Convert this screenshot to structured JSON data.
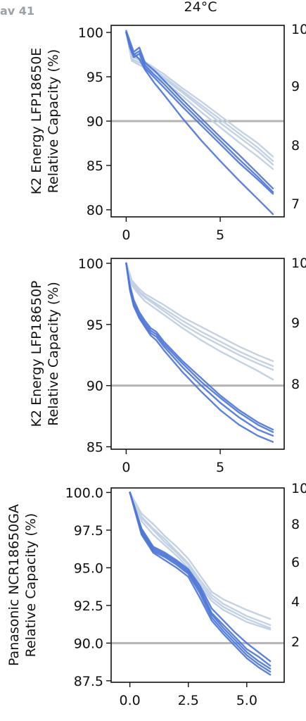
{
  "badge": "av 41",
  "colors": {
    "cycle_aged": "#4f77d8",
    "calendar_aged": "#c3d1e4",
    "threshold": "#b4b4b4",
    "axes": "#111111"
  },
  "chart_data": [
    {
      "type": "line",
      "title": "24°C",
      "ylabel": [
        "K2 Energy LFP18650E",
        "Relative Capacity (%)"
      ],
      "xlim": [
        -0.8,
        8.4
      ],
      "ylim": [
        79.2,
        100.8
      ],
      "xticks": [
        0,
        5
      ],
      "xtick_labels": [
        "0",
        "5"
      ],
      "yticks": [
        80,
        85,
        90,
        95,
        100
      ],
      "ytick_labels": [
        "80",
        "85",
        "90",
        "95",
        "100"
      ],
      "right_clipped_ticks": [
        "10",
        "9",
        "8",
        "7"
      ],
      "threshold": 90,
      "series": [
        {
          "group": "calendar_aged",
          "x": [
            0,
            0.3,
            1,
            2,
            3,
            4,
            5,
            6,
            7,
            7.8
          ],
          "y": [
            100,
            97.5,
            96.7,
            95.3,
            93.7,
            92.2,
            90.6,
            89,
            87.5,
            86.0
          ]
        },
        {
          "group": "calendar_aged",
          "x": [
            0,
            0.3,
            1,
            2,
            3,
            4,
            5,
            6,
            7,
            7.8
          ],
          "y": [
            100,
            97.3,
            96.5,
            95.0,
            93.4,
            91.8,
            90.2,
            88.6,
            87.0,
            85.5
          ]
        },
        {
          "group": "calendar_aged",
          "x": [
            0,
            0.3,
            1,
            2,
            3,
            4,
            5,
            6,
            7,
            7.8
          ],
          "y": [
            100,
            97.0,
            96.3,
            94.8,
            93.2,
            91.5,
            89.8,
            88.2,
            86.6,
            85.1
          ]
        },
        {
          "group": "calendar_aged",
          "x": [
            0,
            0.3,
            1,
            2,
            3,
            4,
            5,
            6,
            7,
            7.8
          ],
          "y": [
            100,
            96.8,
            96.0,
            94.5,
            92.8,
            91.0,
            89.3,
            87.6,
            86.0,
            84.6
          ]
        },
        {
          "group": "cycle_aged",
          "x": [
            0,
            0.2,
            0.4,
            0.7,
            1,
            1.5,
            2,
            3,
            4,
            5,
            6,
            7,
            7.8
          ],
          "y": [
            100.2,
            99.0,
            97.8,
            98.3,
            96.6,
            95.7,
            94.6,
            92.4,
            90.3,
            88.2,
            86.2,
            84.1,
            82.4
          ]
        },
        {
          "group": "cycle_aged",
          "x": [
            0,
            0.2,
            0.4,
            0.7,
            1,
            1.5,
            2,
            3,
            4,
            5,
            6,
            7,
            7.8
          ],
          "y": [
            100,
            98.6,
            97.5,
            97.9,
            96.3,
            95.2,
            94.2,
            92.0,
            89.9,
            87.8,
            85.7,
            83.7,
            82.0
          ]
        },
        {
          "group": "cycle_aged",
          "x": [
            0,
            0.2,
            0.4,
            0.7,
            1,
            1.5,
            2,
            3,
            4,
            5,
            6,
            7,
            7.8
          ],
          "y": [
            100,
            98.3,
            97.2,
            97.6,
            96.0,
            94.9,
            93.8,
            91.6,
            89.5,
            87.4,
            85.3,
            83.4,
            81.8
          ]
        },
        {
          "group": "cycle_aged",
          "x": [
            0,
            0.3,
            0.7,
            1,
            1.5,
            2,
            3,
            4,
            5,
            6,
            7,
            7.8
          ],
          "y": [
            100,
            97.8,
            97.0,
            95.8,
            94.3,
            93.0,
            90.3,
            87.8,
            85.5,
            83.3,
            81.2,
            79.5
          ]
        }
      ]
    },
    {
      "type": "line",
      "title": "",
      "ylabel": [
        "K2 Energy LFP18650P",
        "Relative Capacity (%)"
      ],
      "xlim": [
        -0.8,
        8.4
      ],
      "ylim": [
        84.8,
        100.4
      ],
      "xticks": [
        0,
        5
      ],
      "xtick_labels": [
        "0",
        "5"
      ],
      "yticks": [
        85,
        90,
        95,
        100
      ],
      "ytick_labels": [
        "85",
        "90",
        "95",
        "100"
      ],
      "right_clipped_ticks": [
        "10",
        "9",
        "8"
      ],
      "threshold": 90,
      "series": [
        {
          "group": "calendar_aged",
          "x": [
            0,
            0.3,
            0.7,
            1,
            2,
            3,
            4,
            5,
            6,
            7,
            7.8
          ],
          "y": [
            100,
            98.6,
            97.9,
            97.5,
            96.6,
            95.6,
            94.8,
            94.0,
            93.2,
            92.5,
            92.0
          ]
        },
        {
          "group": "calendar_aged",
          "x": [
            0,
            0.3,
            0.7,
            1,
            2,
            3,
            4,
            5,
            6,
            7,
            7.8
          ],
          "y": [
            100,
            98.5,
            97.7,
            97.3,
            96.3,
            95.3,
            94.4,
            93.6,
            92.8,
            92.1,
            91.6
          ]
        },
        {
          "group": "calendar_aged",
          "x": [
            0,
            0.3,
            0.7,
            1,
            2,
            3,
            4,
            5,
            6,
            7,
            7.8
          ],
          "y": [
            100,
            98.4,
            97.6,
            97.2,
            96.1,
            95.0,
            94.1,
            93.3,
            92.5,
            91.8,
            91.3
          ]
        },
        {
          "group": "calendar_aged",
          "x": [
            0,
            0.3,
            0.7,
            1,
            2,
            3,
            4,
            5,
            6,
            7,
            7.8
          ],
          "y": [
            100,
            98.2,
            97.4,
            96.9,
            95.8,
            94.7,
            93.7,
            92.8,
            92.0,
            91.2,
            90.5
          ]
        },
        {
          "group": "cycle_aged",
          "x": [
            0,
            0.2,
            0.4,
            0.7,
            1,
            1.3,
            1.6,
            2,
            3,
            4,
            5,
            6,
            7,
            7.8
          ],
          "y": [
            100,
            98.2,
            97.0,
            96.0,
            95.3,
            94.7,
            94.4,
            93.6,
            92.0,
            90.6,
            89.2,
            88.0,
            87.0,
            86.4
          ]
        },
        {
          "group": "cycle_aged",
          "x": [
            0,
            0.2,
            0.4,
            0.7,
            1,
            1.3,
            1.6,
            2,
            3,
            4,
            5,
            6,
            7,
            7.8
          ],
          "y": [
            100,
            98.0,
            96.8,
            95.8,
            95.1,
            94.5,
            94.2,
            93.4,
            91.8,
            90.3,
            89.0,
            87.8,
            86.8,
            86.2
          ]
        },
        {
          "group": "cycle_aged",
          "x": [
            0,
            0.2,
            0.4,
            0.7,
            1,
            1.3,
            1.6,
            2,
            3,
            4,
            5,
            6,
            7,
            7.8
          ],
          "y": [
            100,
            97.9,
            96.6,
            95.6,
            94.9,
            94.3,
            94.0,
            93.2,
            91.5,
            90.0,
            88.6,
            87.4,
            86.4,
            85.9
          ]
        },
        {
          "group": "cycle_aged",
          "x": [
            0,
            0.2,
            0.4,
            0.7,
            1,
            1.3,
            1.6,
            2,
            3,
            4,
            5,
            6,
            7,
            7.8
          ],
          "y": [
            100,
            97.8,
            96.5,
            95.5,
            94.8,
            94.1,
            93.7,
            92.9,
            91.1,
            89.5,
            88.0,
            86.8,
            85.9,
            85.4
          ]
        }
      ]
    },
    {
      "type": "line",
      "title": "",
      "ylabel": [
        "Panasonic NCR18650GA",
        "Relative Capacity (%)"
      ],
      "xlim": [
        -0.8,
        6.6
      ],
      "ylim": [
        87.4,
        100.3
      ],
      "xticks": [
        0,
        2.5,
        5
      ],
      "xtick_labels": [
        "0.0",
        "2.5",
        "5.0"
      ],
      "yticks": [
        87.5,
        90,
        92.5,
        95,
        97.5,
        100
      ],
      "ytick_labels": [
        "87.5",
        "90.0",
        "92.5",
        "95.0",
        "97.5",
        "100.0"
      ],
      "right_clipped_ticks": [
        "10",
        "8",
        "6",
        "4",
        "2"
      ],
      "threshold": 90,
      "series": [
        {
          "group": "calendar_aged",
          "x": [
            0,
            0.5,
            1,
            1.5,
            2,
            2.5,
            3,
            3.5,
            4,
            5,
            6
          ],
          "y": [
            100,
            98.6,
            97.9,
            97.1,
            96.4,
            95.6,
            94.5,
            93.4,
            92.9,
            92.2,
            91.6
          ]
        },
        {
          "group": "calendar_aged",
          "x": [
            0,
            0.5,
            1,
            1.5,
            2,
            2.5,
            3,
            3.5,
            4,
            5,
            6
          ],
          "y": [
            100,
            98.4,
            97.6,
            96.9,
            96.1,
            95.3,
            94.2,
            93.2,
            92.6,
            91.8,
            91.2
          ]
        },
        {
          "group": "calendar_aged",
          "x": [
            0,
            0.5,
            1,
            1.5,
            2,
            2.5,
            3,
            3.5,
            4,
            5,
            6
          ],
          "y": [
            100,
            98.3,
            97.5,
            96.7,
            96.0,
            95.2,
            94.0,
            93.0,
            92.4,
            91.6,
            91.0
          ]
        },
        {
          "group": "calendar_aged",
          "x": [
            0,
            0.5,
            1,
            1.5,
            2,
            2.5,
            3,
            3.5,
            4,
            5,
            6
          ],
          "y": [
            100,
            98.1,
            97.2,
            96.5,
            95.8,
            95.0,
            93.8,
            92.8,
            92.2,
            91.4,
            90.9
          ]
        },
        {
          "group": "cycle_aged",
          "x": [
            0,
            0.5,
            1,
            1.5,
            2,
            2.5,
            3,
            3.5,
            4,
            4.5,
            5,
            5.5,
            6
          ],
          "y": [
            100,
            97.6,
            96.4,
            96.0,
            95.5,
            94.9,
            93.8,
            92.3,
            91.5,
            90.7,
            90.0,
            89.4,
            88.8
          ]
        },
        {
          "group": "cycle_aged",
          "x": [
            0,
            0.5,
            1,
            1.5,
            2,
            2.5,
            3,
            3.5,
            4,
            4.5,
            5,
            5.5,
            6
          ],
          "y": [
            100,
            97.5,
            96.3,
            95.9,
            95.4,
            94.8,
            93.6,
            92.0,
            91.2,
            90.4,
            89.6,
            89.1,
            88.5
          ]
        },
        {
          "group": "cycle_aged",
          "x": [
            0,
            0.5,
            1,
            1.5,
            2,
            2.5,
            3,
            3.5,
            4,
            4.5,
            5,
            5.5,
            6
          ],
          "y": [
            100,
            97.4,
            96.2,
            95.8,
            95.3,
            94.7,
            93.5,
            91.9,
            91.0,
            90.2,
            89.4,
            88.8,
            88.3
          ]
        },
        {
          "group": "cycle_aged",
          "x": [
            0,
            0.5,
            1,
            1.5,
            2,
            2.5,
            3,
            3.5,
            4,
            4.5,
            5,
            5.5,
            6
          ],
          "y": [
            100,
            97.3,
            96.1,
            95.7,
            95.2,
            94.6,
            93.3,
            91.7,
            90.8,
            90.0,
            89.2,
            88.6,
            88.1
          ]
        },
        {
          "group": "cycle_aged",
          "x": [
            0,
            0.5,
            1,
            1.5,
            2,
            2.5,
            3,
            3.5,
            4,
            4.5,
            5,
            5.5,
            6
          ],
          "y": [
            100,
            97.2,
            96.0,
            95.5,
            95.0,
            94.4,
            93.0,
            91.5,
            90.6,
            89.8,
            89.0,
            88.4,
            87.9
          ]
        }
      ]
    }
  ]
}
